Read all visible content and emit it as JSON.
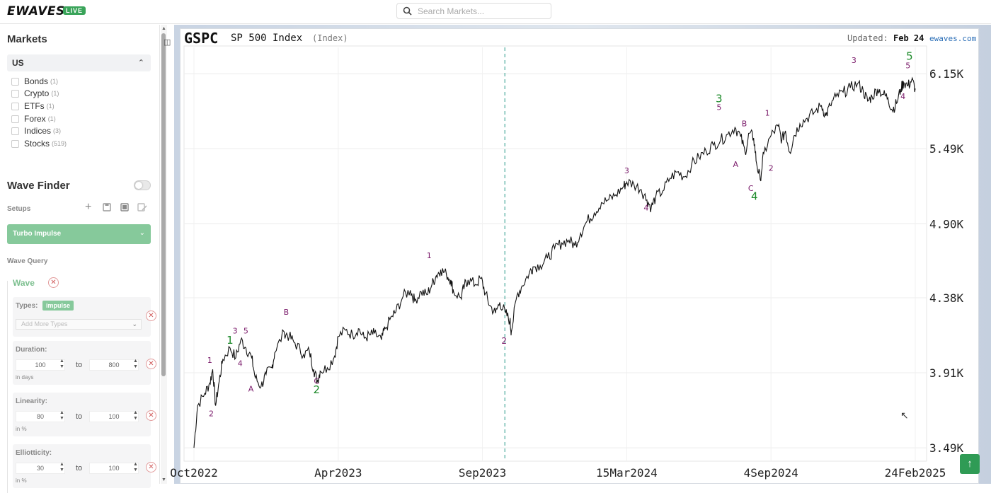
{
  "app": {
    "logo": "EWAVES",
    "logo_badge": "LIVE"
  },
  "search": {
    "placeholder": "Search Markets..."
  },
  "markets": {
    "title": "Markets",
    "region": "US",
    "items": [
      {
        "label": "Bonds",
        "count": "(1)"
      },
      {
        "label": "Crypto",
        "count": "(1)"
      },
      {
        "label": "ETFs",
        "count": "(1)"
      },
      {
        "label": "Forex",
        "count": "(1)"
      },
      {
        "label": "Indices",
        "count": "(3)"
      },
      {
        "label": "Stocks",
        "count": "(519)"
      }
    ]
  },
  "wave_finder": {
    "title": "Wave Finder",
    "setups_label": "Setups",
    "setup_selected": "Turbo Impulse",
    "wave_query_label": "Wave Query",
    "wave_label": "Wave",
    "types_label": "Types:",
    "type_chip": "impulse",
    "add_types_placeholder": "Add More Types",
    "to_label": "to",
    "duration": {
      "label": "Duration:",
      "from": "100",
      "to": "800",
      "unit": "in days"
    },
    "linearity": {
      "label": "Linearity:",
      "from": "80",
      "to": "100",
      "unit": "in %"
    },
    "ellipticity": {
      "label": "Elliotticity:",
      "from": "30",
      "to": "100",
      "unit": "in %"
    }
  },
  "chart_header": {
    "ticker": "GSPC",
    "name": "SP 500 Index",
    "type": "(Index)",
    "updated_label": "Updated:",
    "updated_value": "Feb 24",
    "brand": "ewaves.com"
  },
  "chart_data": {
    "type": "line",
    "title": "GSPC SP 500 Index",
    "x_tick_labels": [
      "Oct2022",
      "Apr2023",
      "Sep2023",
      "15Mar2024",
      "4Sep2024",
      "24Feb2025"
    ],
    "y_tick_labels": [
      "6.15K",
      "5.49K",
      "4.90K",
      "4.38K",
      "3.91K",
      "3.49K"
    ],
    "y_tick_values": [
      6150,
      5490,
      4900,
      4380,
      3910,
      3490
    ],
    "ylim": [
      3420,
      6400
    ],
    "scale": "log",
    "grid": true,
    "series": [
      {
        "values": [
          [
            0,
            3490
          ],
          [
            0.005,
            3720
          ],
          [
            0.015,
            3790
          ],
          [
            0.022,
            3850
          ],
          [
            0.026,
            3930
          ],
          [
            0.03,
            3720
          ],
          [
            0.035,
            3860
          ],
          [
            0.04,
            3990
          ],
          [
            0.05,
            4060
          ],
          [
            0.058,
            4000
          ],
          [
            0.065,
            4110
          ],
          [
            0.072,
            4060
          ],
          [
            0.08,
            4000
          ],
          [
            0.085,
            3880
          ],
          [
            0.093,
            3830
          ],
          [
            0.1,
            3900
          ],
          [
            0.108,
            3940
          ],
          [
            0.112,
            4030
          ],
          [
            0.125,
            4160
          ],
          [
            0.132,
            4130
          ],
          [
            0.14,
            4090
          ],
          [
            0.152,
            4020
          ],
          [
            0.16,
            4040
          ],
          [
            0.166,
            3930
          ],
          [
            0.171,
            3860
          ],
          [
            0.175,
            3920
          ],
          [
            0.185,
            3940
          ],
          [
            0.195,
            4010
          ],
          [
            0.2,
            4130
          ],
          [
            0.21,
            4170
          ],
          [
            0.22,
            4140
          ],
          [
            0.228,
            4180
          ],
          [
            0.236,
            4120
          ],
          [
            0.244,
            4140
          ],
          [
            0.25,
            4150
          ],
          [
            0.26,
            4110
          ],
          [
            0.265,
            4180
          ],
          [
            0.275,
            4260
          ],
          [
            0.28,
            4290
          ],
          [
            0.29,
            4390
          ],
          [
            0.3,
            4430
          ],
          [
            0.306,
            4360
          ],
          [
            0.315,
            4420
          ],
          [
            0.323,
            4400
          ],
          [
            0.33,
            4470
          ],
          [
            0.336,
            4530
          ],
          [
            0.342,
            4570
          ],
          [
            0.35,
            4540
          ],
          [
            0.356,
            4500
          ],
          [
            0.36,
            4420
          ],
          [
            0.37,
            4380
          ],
          [
            0.375,
            4460
          ],
          [
            0.38,
            4500
          ],
          [
            0.39,
            4470
          ],
          [
            0.398,
            4510
          ],
          [
            0.404,
            4410
          ],
          [
            0.41,
            4330
          ],
          [
            0.418,
            4280
          ],
          [
            0.424,
            4350
          ],
          [
            0.432,
            4280
          ],
          [
            0.438,
            4230
          ],
          [
            0.44,
            4160
          ],
          [
            0.448,
            4400
          ],
          [
            0.455,
            4460
          ],
          [
            0.465,
            4550
          ],
          [
            0.47,
            4590
          ],
          [
            0.48,
            4600
          ],
          [
            0.49,
            4650
          ],
          [
            0.5,
            4720
          ],
          [
            0.51,
            4760
          ],
          [
            0.52,
            4780
          ],
          [
            0.528,
            4740
          ],
          [
            0.536,
            4830
          ],
          [
            0.545,
            4920
          ],
          [
            0.555,
            4980
          ],
          [
            0.565,
            5060
          ],
          [
            0.575,
            5080
          ],
          [
            0.585,
            5120
          ],
          [
            0.595,
            5180
          ],
          [
            0.6,
            5220
          ],
          [
            0.61,
            5200
          ],
          [
            0.62,
            5160
          ],
          [
            0.628,
            5080
          ],
          [
            0.634,
            5020
          ],
          [
            0.64,
            5100
          ],
          [
            0.65,
            5150
          ],
          [
            0.66,
            5250
          ],
          [
            0.67,
            5300
          ],
          [
            0.68,
            5260
          ],
          [
            0.69,
            5360
          ],
          [
            0.7,
            5420
          ],
          [
            0.71,
            5470
          ],
          [
            0.72,
            5520
          ],
          [
            0.73,
            5560
          ],
          [
            0.74,
            5610
          ],
          [
            0.75,
            5670
          ],
          [
            0.758,
            5590
          ],
          [
            0.764,
            5460
          ],
          [
            0.77,
            5620
          ],
          [
            0.776,
            5580
          ],
          [
            0.78,
            5370
          ],
          [
            0.785,
            5240
          ],
          [
            0.79,
            5450
          ],
          [
            0.8,
            5600
          ],
          [
            0.81,
            5680
          ],
          [
            0.815,
            5560
          ],
          [
            0.82,
            5640
          ],
          [
            0.826,
            5460
          ],
          [
            0.832,
            5600
          ],
          [
            0.84,
            5700
          ],
          [
            0.85,
            5750
          ],
          [
            0.86,
            5800
          ],
          [
            0.87,
            5860
          ],
          [
            0.876,
            5770
          ],
          [
            0.882,
            5860
          ],
          [
            0.89,
            5940
          ],
          [
            0.9,
            5980
          ],
          [
            0.91,
            6020
          ],
          [
            0.92,
            6060
          ],
          [
            0.928,
            5990
          ],
          [
            0.934,
            5900
          ],
          [
            0.94,
            5940
          ],
          [
            0.948,
            6010
          ],
          [
            0.956,
            5960
          ],
          [
            0.962,
            5930
          ],
          [
            0.968,
            5820
          ],
          [
            0.974,
            5880
          ],
          [
            0.98,
            6010
          ],
          [
            0.984,
            6070
          ],
          [
            0.99,
            6040
          ],
          [
            0.995,
            6090
          ],
          [
            1,
            6013
          ]
        ],
        "x_unit": "fraction of period Oct2022–24Feb2025"
      }
    ],
    "wave_labels": [
      {
        "t": "1",
        "x": 0.05,
        "v": 4085,
        "color": "#1d8a2a",
        "size": 15
      },
      {
        "t": "2",
        "x": 0.17,
        "v": 3790,
        "color": "#1d8a2a",
        "size": 15
      },
      {
        "t": "2",
        "x": 0.43,
        "v": 4085,
        "color": "#7a1a6a",
        "size": 12
      },
      {
        "t": "3",
        "x": 0.728,
        "v": 5890,
        "color": "#1d8a2a",
        "size": 15
      },
      {
        "t": "4",
        "x": 0.777,
        "v": 5080,
        "color": "#1d8a2a",
        "size": 15
      },
      {
        "t": "5",
        "x": 0.992,
        "v": 6280,
        "color": "#1d8a2a",
        "size": 15
      },
      {
        "t": "1",
        "x": 0.022,
        "v": 3970,
        "color": "#7a1a6a",
        "size": 11
      },
      {
        "t": "2",
        "x": 0.024,
        "v": 3660,
        "color": "#7a1a6a",
        "size": 11
      },
      {
        "t": "3",
        "x": 0.057,
        "v": 4150,
        "color": "#7a1a6a",
        "size": 11
      },
      {
        "t": "5",
        "x": 0.072,
        "v": 4150,
        "color": "#7a1a6a",
        "size": 11
      },
      {
        "t": "4",
        "x": 0.064,
        "v": 3950,
        "color": "#7a1a6a",
        "size": 11
      },
      {
        "t": "A",
        "x": 0.079,
        "v": 3800,
        "color": "#7a1a6a",
        "size": 11
      },
      {
        "t": "B",
        "x": 0.128,
        "v": 4270,
        "color": "#7a1a6a",
        "size": 11
      },
      {
        "t": "C",
        "x": 0.17,
        "v": 3845,
        "color": "#7a1a6a",
        "size": 11
      },
      {
        "t": "1",
        "x": 0.326,
        "v": 4650,
        "color": "#7a1a6a",
        "size": 11
      },
      {
        "t": "3",
        "x": 0.6,
        "v": 5290,
        "color": "#7a1a6a",
        "size": 11
      },
      {
        "t": "4",
        "x": 0.627,
        "v": 5000,
        "color": "#7a1a6a",
        "size": 11
      },
      {
        "t": "B",
        "x": 0.763,
        "v": 5680,
        "color": "#7a1a6a",
        "size": 11
      },
      {
        "t": "A",
        "x": 0.751,
        "v": 5340,
        "color": "#7a1a6a",
        "size": 11
      },
      {
        "t": "C",
        "x": 0.772,
        "v": 5150,
        "color": "#7a1a6a",
        "size": 11
      },
      {
        "t": "2",
        "x": 0.8,
        "v": 5310,
        "color": "#7a1a6a",
        "size": 11
      },
      {
        "t": "1",
        "x": 0.795,
        "v": 5770,
        "color": "#7a1a6a",
        "size": 11
      },
      {
        "t": "3",
        "x": 0.915,
        "v": 6250,
        "color": "#7a1a6a",
        "size": 11
      },
      {
        "t": "5",
        "x": 0.99,
        "v": 6200,
        "color": "#7a1a6a",
        "size": 11
      },
      {
        "t": "4",
        "x": 0.983,
        "v": 5920,
        "color": "#7a1a6a",
        "size": 11
      },
      {
        "t": "5",
        "x": 0.728,
        "v": 5820,
        "color": "#7a1a6a",
        "size": 11
      }
    ],
    "vertical_marker_x": 0.431
  },
  "colors": {
    "accent": "#86c99b",
    "brand_green": "#3aa45a",
    "line": "#111111",
    "marker": "#2a9a8a",
    "wave_major": "#1d8a2a",
    "wave_minor": "#7a1a6a"
  }
}
